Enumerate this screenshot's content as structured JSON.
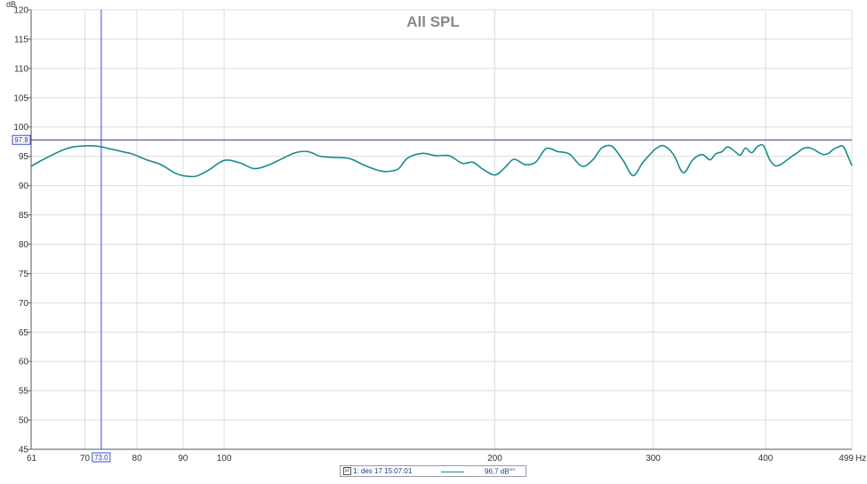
{
  "chart_data": {
    "type": "line",
    "title": "All SPL",
    "ylabel": "dB",
    "xunit": "Hz",
    "xscale": "log",
    "xlim": [
      61,
      499
    ],
    "ylim": [
      45,
      120
    ],
    "grid": true,
    "x_ticks": [
      61,
      70,
      80,
      90,
      100,
      200,
      300,
      400,
      499
    ],
    "x_tick_labels": [
      "61",
      "70",
      "80",
      "90",
      "100",
      "200",
      "300",
      "400",
      "499"
    ],
    "y_ticks": [
      45,
      50,
      55,
      60,
      65,
      70,
      75,
      80,
      85,
      90,
      95,
      100,
      105,
      110,
      115,
      120
    ],
    "cursor": {
      "x": 73.0,
      "y": 97.8,
      "x_label": "73.0",
      "y_label": "97.8"
    },
    "series": [
      {
        "name": "1: des 17 15:07:01",
        "color": "#1a8c8c",
        "x": [
          61,
          63,
          66,
          68,
          71,
          73,
          75,
          77,
          79,
          82,
          85,
          88,
          90,
          93,
          96,
          100,
          104,
          108,
          112,
          116,
          120,
          124,
          128,
          133,
          138,
          143,
          147,
          151,
          156,
          160,
          166,
          172,
          178,
          184,
          189,
          194,
          200,
          205,
          210,
          216,
          222,
          228,
          235,
          242,
          250,
          257,
          263,
          270,
          278,
          285,
          292,
          298,
          302,
          308,
          316,
          324,
          332,
          340,
          347,
          352,
          358,
          363,
          370,
          375,
          380,
          386,
          392,
          398,
          404,
          410,
          416,
          422,
          428,
          434,
          440,
          446,
          452,
          458,
          464,
          470,
          476,
          482,
          488,
          494,
          499
        ],
        "y": [
          93.3,
          94.5,
          96.0,
          96.6,
          96.8,
          96.6,
          96.2,
          95.8,
          95.4,
          94.4,
          93.6,
          92.2,
          91.7,
          91.6,
          92.6,
          94.3,
          93.9,
          92.9,
          93.5,
          94.6,
          95.6,
          95.8,
          95.0,
          94.8,
          94.6,
          93.5,
          92.8,
          92.4,
          92.8,
          94.7,
          95.5,
          95.1,
          95.1,
          93.8,
          94.0,
          92.8,
          91.8,
          93.0,
          94.5,
          93.6,
          94.0,
          96.3,
          95.8,
          95.4,
          93.3,
          94.4,
          96.4,
          96.7,
          94.2,
          91.7,
          93.9,
          95.4,
          96.3,
          96.8,
          95.3,
          92.2,
          94.4,
          95.3,
          94.4,
          95.4,
          95.8,
          96.6,
          95.8,
          95.2,
          96.4,
          95.6,
          96.7,
          96.8,
          94.5,
          93.4,
          93.6,
          94.3,
          95.0,
          95.6,
          96.3,
          96.5,
          96.2,
          95.7,
          95.3,
          95.5,
          96.2,
          96.6,
          96.7,
          95.0,
          93.4
        ]
      }
    ]
  },
  "legend": {
    "check_mark": "☑",
    "entry_label": "1: des 17 15:07:01",
    "value": "96,7 dB",
    "value_suffix": "SPL"
  }
}
